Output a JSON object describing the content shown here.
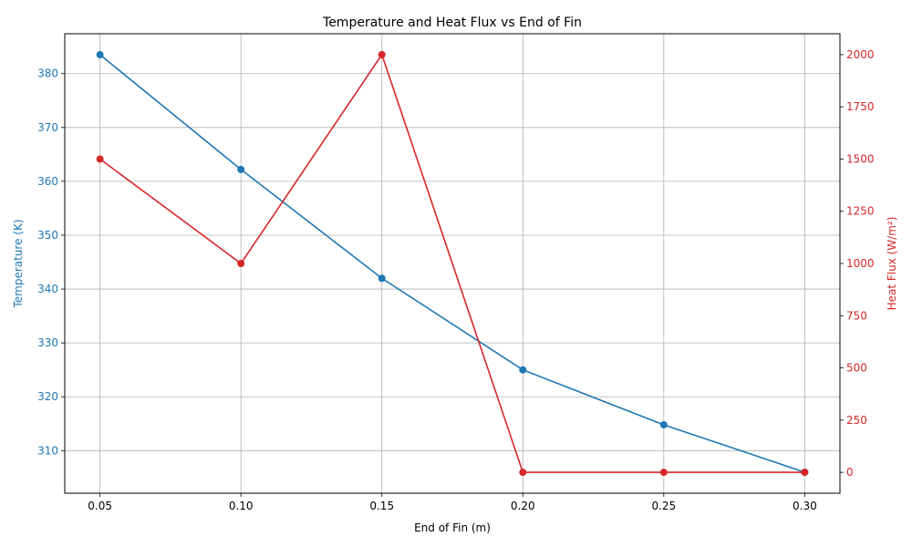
{
  "chart_data": {
    "type": "line",
    "title": "Temperature and Heat Flux vs End of Fin",
    "xlabel": "End of Fin (m)",
    "ylabel_left": "Temperature (K)",
    "ylabel_right": "Heat Flux (W/m²)",
    "x": [
      0.05,
      0.1,
      0.15,
      0.2,
      0.25,
      0.3
    ],
    "x_tick_labels": [
      "0.05",
      "0.10",
      "0.15",
      "0.20",
      "0.25",
      "0.30"
    ],
    "xlim": [
      0.0375,
      0.3125
    ],
    "grid": true,
    "series": [
      {
        "axis": "left",
        "color": "#1f77b4",
        "marker": "circle",
        "values": [
          383.5,
          362.2,
          342.0,
          325.0,
          314.8,
          306.0
        ]
      },
      {
        "axis": "right",
        "color": "#d62728",
        "marker": "circle",
        "values": [
          1500,
          1000,
          2000,
          0,
          0,
          0
        ]
      }
    ],
    "y_left": {
      "ylim": [
        302.1,
        387.4
      ],
      "ticks": [
        310,
        320,
        330,
        340,
        350,
        360,
        370,
        380
      ],
      "tick_labels": [
        "310",
        "320",
        "330",
        "340",
        "350",
        "360",
        "370",
        "380"
      ],
      "color": "#1f77b4"
    },
    "y_right": {
      "ylim": [
        -100,
        2100
      ],
      "ticks": [
        0,
        250,
        500,
        750,
        1000,
        1250,
        1500,
        1750,
        2000
      ],
      "tick_labels": [
        "0",
        "250",
        "500",
        "750",
        "1000",
        "1250",
        "1500",
        "1750",
        "2000"
      ],
      "color": "#d62728"
    }
  }
}
